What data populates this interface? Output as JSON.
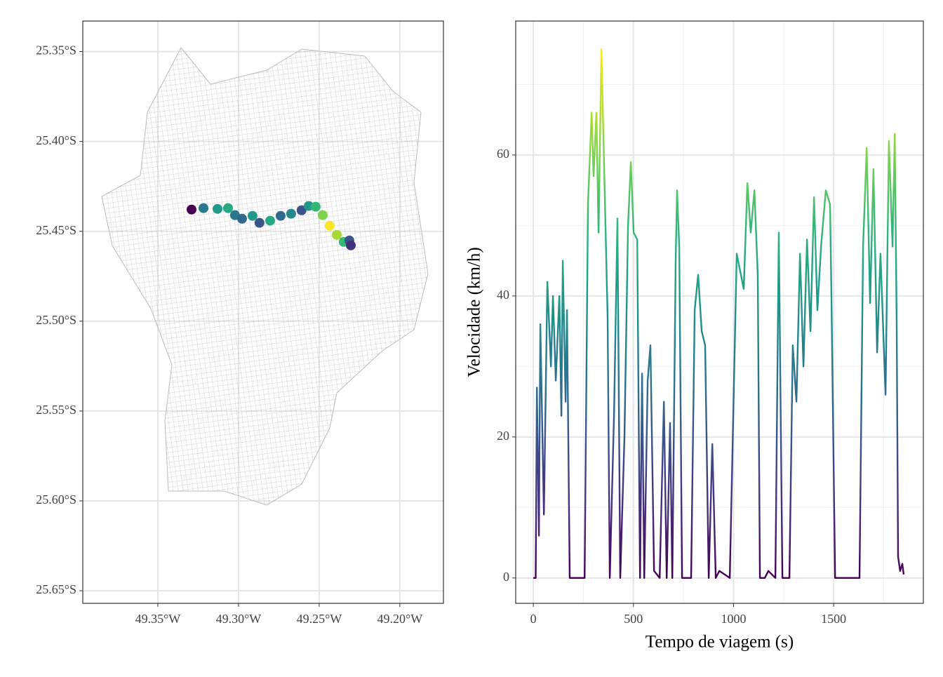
{
  "chart_data": [
    {
      "type": "map",
      "x": [
        -49.3217,
        -49.313,
        -49.3065,
        -49.3022,
        -49.2978,
        -49.2913,
        -49.287,
        -49.2804,
        -49.2739,
        -49.2674,
        -49.2609,
        -49.2565,
        -49.2522,
        -49.2478,
        -49.2435,
        -49.2391,
        -49.2348,
        -49.2313,
        -49.2304,
        -49.3291
      ],
      "y": [
        -25.4371,
        -25.4375,
        -25.4371,
        -25.441,
        -25.443,
        -25.4414,
        -25.4453,
        -25.4441,
        -25.4414,
        -25.4402,
        -25.4383,
        -25.4359,
        -25.4363,
        -25.441,
        -25.4469,
        -25.452,
        -25.4559,
        -25.4551,
        -25.4578,
        -25.4379
      ],
      "color_values": [
        30,
        40,
        45,
        30,
        25,
        40,
        20,
        45,
        25,
        35,
        20,
        40,
        50,
        60,
        75,
        65,
        50,
        20,
        10,
        0
      ],
      "colorscale": "viridis",
      "clim": [
        0,
        75
      ],
      "xlim": [
        -49.3965,
        -49.173
      ],
      "ylim": [
        -25.657,
        -25.333
      ],
      "xticks": [
        {
          "value": -49.35,
          "label": "49.35°W"
        },
        {
          "value": -49.3,
          "label": "49.30°W"
        },
        {
          "value": -49.25,
          "label": "49.25°W"
        },
        {
          "value": -49.2,
          "label": "49.20°W"
        }
      ],
      "yticks": [
        {
          "value": -25.35,
          "label": "25.35°S"
        },
        {
          "value": -25.4,
          "label": "25.40°S"
        },
        {
          "value": -25.45,
          "label": "25.45°S"
        },
        {
          "value": -25.5,
          "label": "25.50°S"
        },
        {
          "value": -25.55,
          "label": "25.55°S"
        },
        {
          "value": -25.6,
          "label": "25.60°S"
        },
        {
          "value": -25.65,
          "label": "25.65°S"
        }
      ],
      "grid": true
    },
    {
      "type": "line",
      "xlabel": "Tempo de viagem (s)",
      "ylabel": "Velocidade (km/h)",
      "x": [
        0,
        12,
        18,
        28,
        35,
        53,
        70,
        88,
        98,
        112,
        130,
        140,
        147,
        161,
        168,
        182,
        256,
        273,
        291,
        301,
        315,
        326,
        340,
        354,
        371,
        382,
        403,
        420,
        434,
        455,
        473,
        487,
        501,
        519,
        533,
        543,
        554,
        571,
        585,
        603,
        631,
        652,
        666,
        683,
        694,
        711,
        718,
        729,
        743,
        788,
        806,
        823,
        841,
        858,
        876,
        894,
        911,
        929,
        981,
        1016,
        1051,
        1069,
        1086,
        1104,
        1121,
        1132,
        1156,
        1174,
        1209,
        1226,
        1244,
        1279,
        1296,
        1314,
        1332,
        1349,
        1367,
        1384,
        1402,
        1419,
        1437,
        1461,
        1482,
        1489,
        1507,
        1629,
        1647,
        1665,
        1682,
        1699,
        1717,
        1734,
        1759,
        1776,
        1794,
        1805,
        1815,
        1822,
        1832,
        1843,
        1850
      ],
      "values": [
        0,
        0,
        27,
        6,
        36,
        9,
        42,
        30,
        40,
        28,
        40,
        23,
        45,
        25,
        38,
        0,
        0,
        53,
        66,
        57,
        66,
        49,
        75,
        58,
        37,
        0,
        23,
        51,
        0,
        20,
        50,
        59,
        49,
        48,
        0,
        29,
        0,
        28,
        33,
        1,
        0,
        25,
        0,
        22,
        0,
        45,
        55,
        47,
        0,
        0,
        38,
        43,
        35,
        33,
        0,
        19,
        0,
        1,
        0,
        46,
        41,
        56,
        49,
        55,
        43,
        0,
        0,
        1,
        0,
        49,
        0,
        0,
        33,
        25,
        46,
        30,
        48,
        35,
        54,
        38,
        47,
        55,
        53,
        40,
        0,
        0,
        47,
        61,
        39,
        58,
        32,
        46,
        26,
        62,
        47,
        63,
        36,
        3,
        1,
        2,
        0.5
      ],
      "colorscale": "viridis",
      "clim": [
        0,
        75
      ],
      "xlim": [
        -88,
        1948
      ],
      "ylim": [
        -3.6,
        79
      ],
      "xticks": [
        0,
        500,
        1000,
        1500
      ],
      "yticks": [
        0,
        20,
        40,
        60
      ],
      "xminor": [
        250,
        750,
        1250,
        1750
      ],
      "yminor": [
        10,
        30,
        50,
        70
      ],
      "grid": true
    }
  ]
}
